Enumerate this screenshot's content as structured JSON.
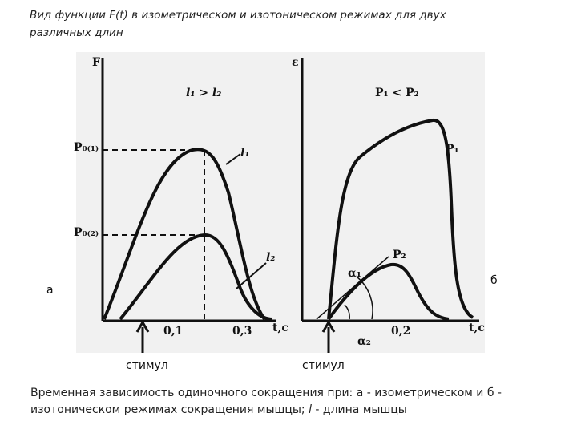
{
  "title": "Вид функции F(t) в изометрическом и изотоническом режимах для двух различных длин",
  "panel_labels": [
    "а",
    "б"
  ],
  "stimulus_labels": [
    "стимул",
    "стимул"
  ],
  "figure": {
    "left": {
      "y_axis": "F",
      "p01": "P₀₍₁₎",
      "p02": "P₀₍₂₎",
      "condition": "l₁ > l₂",
      "curve1": "l₁",
      "curve2": "l₂",
      "tick1": "0,1",
      "tick2": "0,3",
      "x_axis": "t,c"
    },
    "right": {
      "y_axis": "ε",
      "condition": "P₁ < P₂",
      "curve1": "P₁",
      "curve2": "P₂",
      "angle1": "α₁",
      "angle2": "α₂",
      "tick1": "0,2",
      "x_axis": "t,c"
    }
  },
  "caption": [
    "Временная зависимость одиночного сокращения при: а - изометрическом и б - изотоническом режимах сокращения мышцы; ",
    "l",
    " - длина мышцы"
  ]
}
